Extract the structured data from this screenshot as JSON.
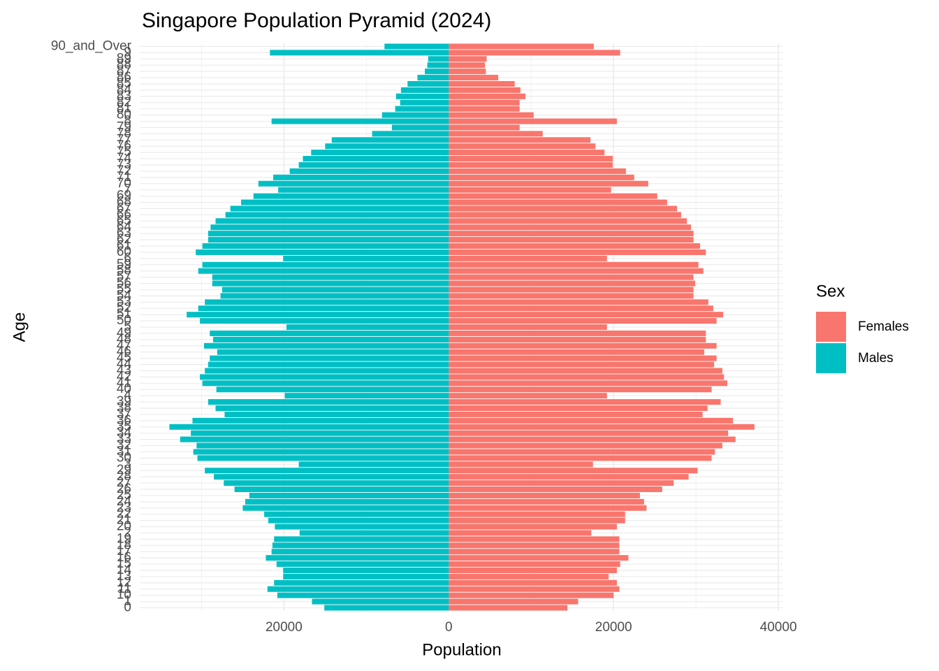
{
  "chart_data": {
    "type": "pyramid",
    "title": "Singapore Population Pyramid (2024)",
    "x_label": "Population",
    "y_label": "Age",
    "legend_title": "Sex",
    "grid": true,
    "categories": [
      "0",
      "1",
      "10",
      "11",
      "12",
      "13",
      "14",
      "15",
      "16",
      "17",
      "18",
      "19",
      "2",
      "20",
      "21",
      "22",
      "23",
      "24",
      "25",
      "26",
      "27",
      "28",
      "29",
      "3",
      "30",
      "31",
      "32",
      "33",
      "34",
      "35",
      "36",
      "37",
      "38",
      "39",
      "4",
      "40",
      "41",
      "42",
      "43",
      "44",
      "45",
      "46",
      "47",
      "48",
      "49",
      "5",
      "50",
      "51",
      "52",
      "53",
      "54",
      "55",
      "56",
      "57",
      "58",
      "59",
      "6",
      "60",
      "61",
      "62",
      "63",
      "64",
      "65",
      "66",
      "67",
      "68",
      "69",
      "7",
      "70",
      "71",
      "72",
      "73",
      "74",
      "75",
      "76",
      "77",
      "78",
      "79",
      "8",
      "80",
      "81",
      "82",
      "83",
      "84",
      "85",
      "86",
      "87",
      "88",
      "89",
      "9",
      "90_and_Over"
    ],
    "series": [
      {
        "name": "Females",
        "color": "#F8766D",
        "side": "right",
        "values": [
          14400,
          15700,
          20000,
          20700,
          20400,
          19400,
          20400,
          20800,
          21800,
          20700,
          20700,
          20700,
          17300,
          20400,
          21400,
          21400,
          24000,
          23700,
          23200,
          25900,
          27300,
          29100,
          30200,
          17500,
          31900,
          32300,
          33200,
          34800,
          33900,
          37100,
          34500,
          30800,
          31400,
          33000,
          19200,
          31900,
          33800,
          33400,
          33200,
          32200,
          32500,
          31000,
          32500,
          31200,
          31200,
          19200,
          32500,
          33300,
          32100,
          31500,
          29700,
          29700,
          29900,
          29700,
          30900,
          30300,
          19200,
          31200,
          30500,
          29700,
          29700,
          29400,
          28900,
          28200,
          27700,
          26500,
          25300,
          19700,
          24200,
          22500,
          21500,
          19900,
          19900,
          18900,
          17800,
          17200,
          11400,
          8600,
          20400,
          10300,
          8600,
          8600,
          9300,
          8700,
          8000,
          6000,
          4500,
          4400,
          4600,
          20800,
          17600
        ]
      },
      {
        "name": "Males",
        "color": "#00BFC4",
        "side": "left",
        "values": [
          15100,
          16600,
          20800,
          22000,
          21200,
          20100,
          20100,
          20900,
          22200,
          21500,
          21400,
          21200,
          18100,
          21100,
          21900,
          22400,
          25000,
          24700,
          24200,
          26000,
          27300,
          28500,
          29600,
          18200,
          30500,
          31000,
          30600,
          32600,
          31300,
          33900,
          31100,
          27200,
          28300,
          29200,
          19900,
          28200,
          29900,
          30200,
          29600,
          29200,
          29000,
          28100,
          29700,
          28600,
          29000,
          19700,
          30200,
          31800,
          30400,
          29600,
          27700,
          27500,
          28700,
          28700,
          30400,
          29900,
          20100,
          30700,
          29900,
          29200,
          29200,
          28900,
          28300,
          27100,
          26500,
          25200,
          23700,
          20700,
          23100,
          21300,
          19300,
          18200,
          17700,
          16700,
          15000,
          14200,
          9300,
          6900,
          21500,
          8100,
          6500,
          5900,
          6400,
          5800,
          5000,
          3800,
          2900,
          2600,
          2500,
          21700,
          7800
        ]
      }
    ],
    "xlim": [
      -37500,
      40500
    ],
    "xticks": [
      {
        "value": -20000,
        "label": "20000"
      },
      0,
      20000,
      40000
    ],
    "xminor": [
      -30000,
      -10000,
      10000,
      30000
    ]
  }
}
